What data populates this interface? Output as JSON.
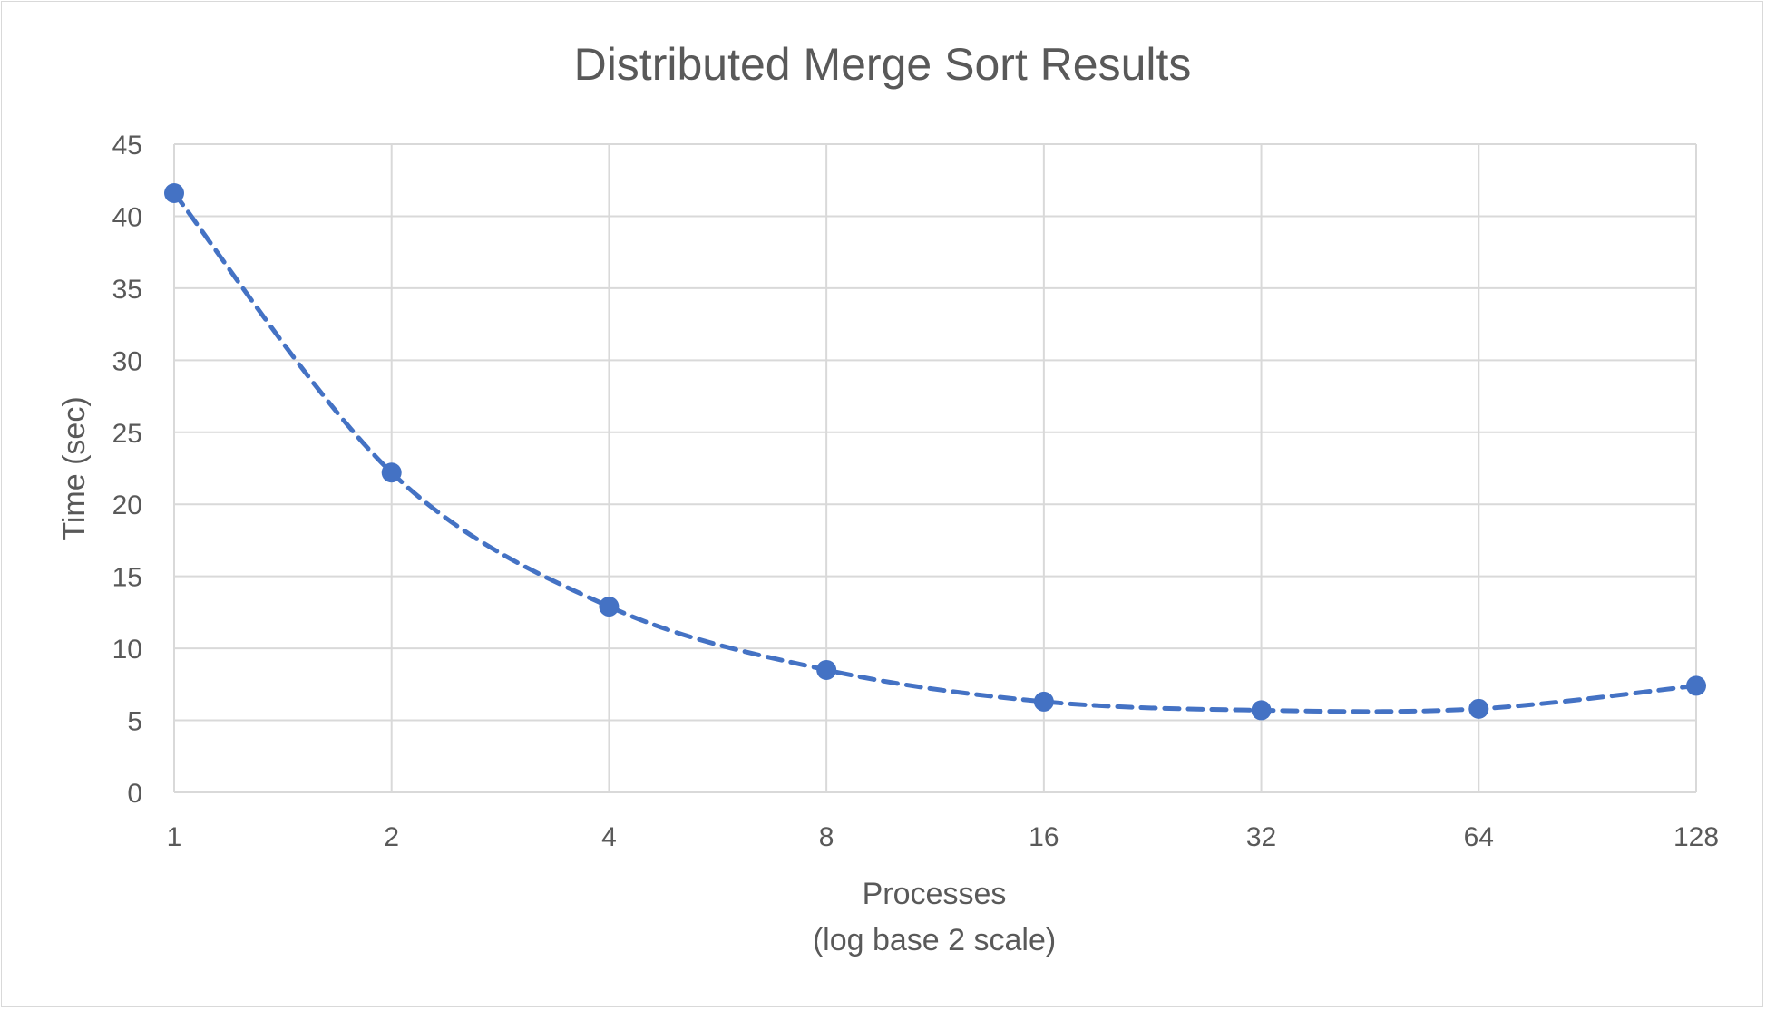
{
  "chart_data": {
    "type": "line",
    "title": "Distributed Merge Sort Results",
    "xlabel": "Processes",
    "xlabel_sub": "(log base 2 scale)",
    "ylabel": "Time (sec)",
    "x_scale": "log2",
    "x": [
      1,
      2,
      4,
      8,
      16,
      32,
      64,
      128
    ],
    "x_tick_labels": [
      "1",
      "2",
      "4",
      "8",
      "16",
      "32",
      "64",
      "128"
    ],
    "ylim": [
      0,
      45
    ],
    "y_ticks": [
      0,
      5,
      10,
      15,
      20,
      25,
      30,
      35,
      40,
      45
    ],
    "grid": true,
    "legend": "none",
    "series": [
      {
        "values": [
          41.6,
          22.2,
          12.9,
          8.5,
          6.3,
          5.7,
          5.8,
          7.4
        ],
        "color": "#4472c4",
        "line_style": "dashed",
        "marker": "circle"
      }
    ]
  },
  "colors": {
    "grid": "#d9d9d9",
    "text": "#595959",
    "series": "#4472c4"
  }
}
